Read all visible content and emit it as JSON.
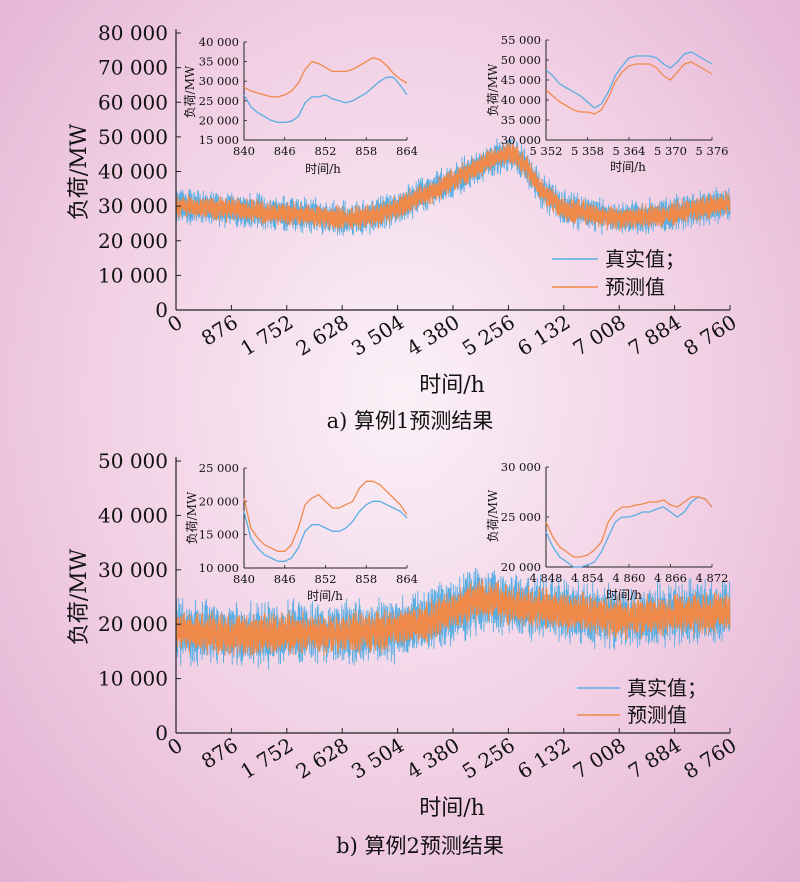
{
  "colors": {
    "actual": "#5aaee3",
    "predicted": "#f08a4b"
  },
  "chart_data": [
    {
      "type": "line",
      "caption": "a) 算例1预测结果",
      "xlabel": "时间/h",
      "ylabel": "负荷/MW",
      "xlim": [
        0,
        8760
      ],
      "ylim": [
        0,
        80000
      ],
      "x_ticks": [
        "0",
        "876",
        "1 752",
        "2 628",
        "3 504",
        "4 380",
        "5 256",
        "6 132",
        "7 008",
        "7 884",
        "8 760"
      ],
      "y_ticks": [
        "0",
        "10 000",
        "20 000",
        "30 000",
        "40 000",
        "50 000",
        "60 000",
        "70 000",
        "80 000"
      ],
      "legend": [
        "真实值；",
        "预测值"
      ],
      "legend_position": "lower-right",
      "trend": {
        "x": [
          0,
          500,
          1000,
          1500,
          2000,
          2400,
          2800,
          3200,
          3600,
          4000,
          4400,
          4800,
          5100,
          5300,
          5500,
          5800,
          6100,
          6500,
          7000,
          7400,
          7800,
          8200,
          8760
        ],
        "y": [
          30000,
          29500,
          29000,
          28000,
          27500,
          26500,
          26500,
          27500,
          30500,
          34000,
          37500,
          41500,
          44500,
          45500,
          42500,
          34000,
          29500,
          28000,
          26500,
          27000,
          27500,
          29000,
          31000
        ],
        "actual_spread": 4500,
        "predicted_spread": 3500
      },
      "insets": [
        {
          "xlabel": "时间/h",
          "ylabel": "负荷/MW",
          "xlim": [
            840,
            864
          ],
          "ylim": [
            15000,
            40000
          ],
          "x_ticks": [
            "840",
            "846",
            "852",
            "858",
            "864"
          ],
          "y_ticks": [
            "15 000",
            "20 000",
            "25 000",
            "30 000",
            "35 000",
            "40 000"
          ],
          "series": [
            {
              "name": "真实值",
              "x": [
                840,
                841,
                842,
                843,
                844,
                845,
                846,
                847,
                848,
                849,
                850,
                851,
                852,
                853,
                854,
                855,
                856,
                857,
                858,
                859,
                860,
                861,
                862,
                863,
                864
              ],
              "y": [
                26500,
                23500,
                22000,
                21000,
                20000,
                19500,
                19500,
                19800,
                21000,
                24500,
                26000,
                26000,
                26500,
                25500,
                25000,
                24500,
                25000,
                26000,
                27000,
                28500,
                30000,
                31000,
                31000,
                29000,
                26500
              ]
            },
            {
              "name": "预测值",
              "x": [
                840,
                841,
                842,
                843,
                844,
                845,
                846,
                847,
                848,
                849,
                850,
                851,
                852,
                853,
                854,
                855,
                856,
                857,
                858,
                859,
                860,
                861,
                862,
                863,
                864
              ],
              "y": [
                28500,
                27500,
                27000,
                26500,
                26000,
                26000,
                26500,
                27500,
                29500,
                33000,
                35000,
                34500,
                33500,
                32500,
                32500,
                32500,
                33000,
                34000,
                35000,
                36000,
                35500,
                34000,
                32000,
                30500,
                29500
              ]
            }
          ]
        },
        {
          "xlabel": "时间/h",
          "ylabel": "负荷/MW",
          "xlim": [
            5352,
            5376
          ],
          "ylim": [
            30000,
            55000
          ],
          "x_ticks": [
            "5 352",
            "5 358",
            "5 364",
            "5 370",
            "5 376"
          ],
          "y_ticks": [
            "30 000",
            "35 000",
            "40 000",
            "45 000",
            "50 000",
            "55 000"
          ],
          "series": [
            {
              "name": "真实值",
              "x": [
                5352,
                5353,
                5354,
                5355,
                5356,
                5357,
                5358,
                5359,
                5360,
                5361,
                5362,
                5363,
                5364,
                5365,
                5366,
                5367,
                5368,
                5369,
                5370,
                5371,
                5372,
                5373,
                5374,
                5375,
                5376
              ],
              "y": [
                47500,
                46000,
                44000,
                43000,
                42000,
                41000,
                39500,
                38000,
                39000,
                42000,
                46000,
                48500,
                50500,
                51000,
                51000,
                51000,
                50500,
                49000,
                48000,
                49500,
                51500,
                52000,
                51000,
                50000,
                49000
              ]
            },
            {
              "name": "预测值",
              "x": [
                5352,
                5353,
                5354,
                5355,
                5356,
                5357,
                5358,
                5359,
                5360,
                5361,
                5362,
                5363,
                5364,
                5365,
                5366,
                5367,
                5368,
                5369,
                5370,
                5371,
                5372,
                5373,
                5374,
                5375,
                5376
              ],
              "y": [
                42500,
                41000,
                39500,
                38500,
                37500,
                37000,
                37000,
                36500,
                37500,
                40500,
                44500,
                47000,
                48500,
                49000,
                49000,
                49000,
                48000,
                46000,
                45000,
                47000,
                49000,
                49500,
                48500,
                47500,
                46500
              ]
            }
          ]
        }
      ]
    },
    {
      "type": "line",
      "caption": "b) 算例2预测结果",
      "xlabel": "时间/h",
      "ylabel": "负荷/MW",
      "xlim": [
        0,
        8760
      ],
      "ylim": [
        0,
        50000
      ],
      "x_ticks": [
        "0",
        "876",
        "1 752",
        "2 628",
        "3 504",
        "4 380",
        "5 256",
        "6 132",
        "7 008",
        "7 884",
        "8 760"
      ],
      "y_ticks": [
        "0",
        "10 000",
        "20 000",
        "30 000",
        "40 000",
        "50 000"
      ],
      "legend": [
        "真实值；",
        "预测值"
      ],
      "legend_position": "lower-right",
      "trend": {
        "x": [
          0,
          400,
          900,
          1400,
          1900,
          2400,
          2800,
          3200,
          3600,
          4000,
          4400,
          4800,
          5200,
          5600,
          6000,
          6400,
          6800,
          7200,
          7600,
          8000,
          8400,
          8760
        ],
        "y": [
          19000,
          18500,
          18000,
          18000,
          18500,
          18000,
          18500,
          18500,
          19500,
          20500,
          22500,
          24500,
          24000,
          23000,
          22500,
          22000,
          21500,
          21000,
          21500,
          22000,
          22000,
          22500
        ],
        "actual_spread": 5200,
        "predicted_spread": 3800
      },
      "insets": [
        {
          "xlabel": "时间/h",
          "ylabel": "负荷/MW",
          "xlim": [
            840,
            864
          ],
          "ylim": [
            10000,
            25000
          ],
          "x_ticks": [
            "840",
            "846",
            "852",
            "858",
            "864"
          ],
          "y_ticks": [
            "10 000",
            "15 000",
            "20 000",
            "25 000"
          ],
          "series": [
            {
              "name": "真实值",
              "x": [
                840,
                841,
                842,
                843,
                844,
                845,
                846,
                847,
                848,
                849,
                850,
                851,
                852,
                853,
                854,
                855,
                856,
                857,
                858,
                859,
                860,
                861,
                862,
                863,
                864
              ],
              "y": [
                18500,
                14500,
                13000,
                12000,
                11500,
                11000,
                11000,
                11500,
                13000,
                15500,
                16500,
                16500,
                16000,
                15500,
                15500,
                16000,
                17000,
                18500,
                19500,
                20000,
                20000,
                19500,
                19000,
                18500,
                17500
              ]
            },
            {
              "name": "预测值",
              "x": [
                840,
                841,
                842,
                843,
                844,
                845,
                846,
                847,
                848,
                849,
                850,
                851,
                852,
                853,
                854,
                855,
                856,
                857,
                858,
                859,
                860,
                861,
                862,
                863,
                864
              ],
              "y": [
                20500,
                16000,
                14500,
                13500,
                13000,
                12500,
                12500,
                13500,
                16000,
                19500,
                20500,
                21000,
                20000,
                19000,
                19000,
                19500,
                20000,
                22000,
                23000,
                23000,
                22500,
                21500,
                20500,
                19500,
                18000
              ]
            }
          ]
        },
        {
          "xlabel": "时间/h",
          "ylabel": "负荷/MW",
          "xlim": [
            4848,
            4872
          ],
          "ylim": [
            20000,
            30000
          ],
          "x_ticks": [
            "4 848",
            "4 854",
            "4 860",
            "4 866",
            "4 872"
          ],
          "y_ticks": [
            "20 000",
            "25 000",
            "30 000"
          ],
          "series": [
            {
              "name": "真实值",
              "x": [
                4848,
                4849,
                4850,
                4851,
                4852,
                4853,
                4854,
                4855,
                4856,
                4857,
                4858,
                4859,
                4860,
                4861,
                4862,
                4863,
                4864,
                4865,
                4866,
                4867,
                4868,
                4869,
                4870,
                4871,
                4872
              ],
              "y": [
                23500,
                22000,
                21000,
                20500,
                20000,
                20000,
                20200,
                20500,
                21500,
                23000,
                24500,
                25000,
                25000,
                25200,
                25500,
                25500,
                25800,
                26000,
                25500,
                25000,
                25500,
                26500,
                27000,
                26800,
                26000
              ]
            },
            {
              "name": "预测值",
              "x": [
                4848,
                4849,
                4850,
                4851,
                4852,
                4853,
                4854,
                4855,
                4856,
                4857,
                4858,
                4859,
                4860,
                4861,
                4862,
                4863,
                4864,
                4865,
                4866,
                4867,
                4868,
                4869,
                4870,
                4871,
                4872
              ],
              "y": [
                24500,
                23000,
                22000,
                21500,
                21000,
                21000,
                21200,
                21700,
                22500,
                24500,
                25500,
                26000,
                26000,
                26200,
                26300,
                26500,
                26500,
                26700,
                26200,
                26000,
                26500,
                27000,
                27000,
                26800,
                26000
              ]
            }
          ]
        }
      ]
    }
  ]
}
